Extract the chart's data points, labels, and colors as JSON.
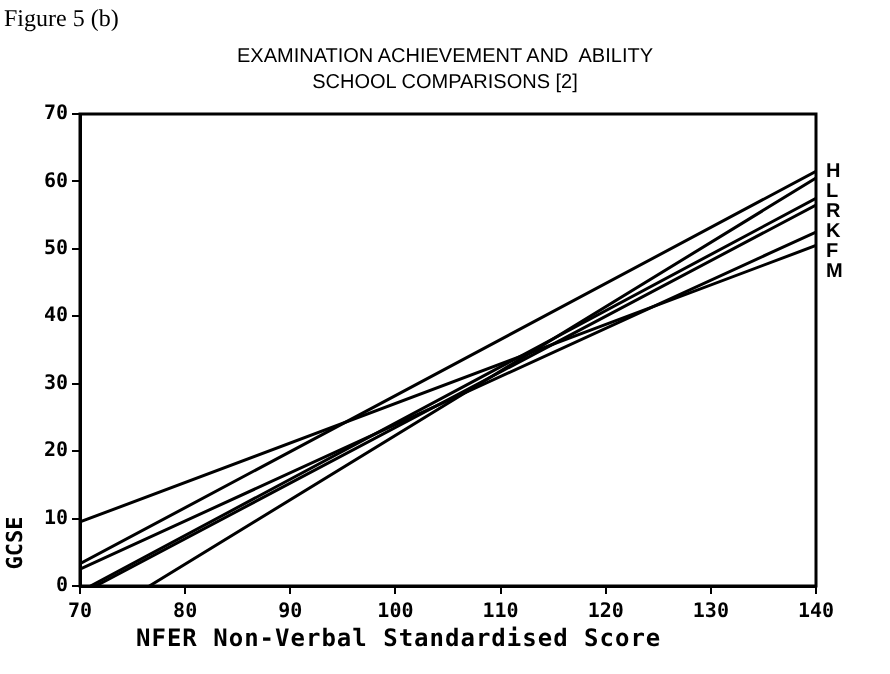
{
  "chart_data": {
    "type": "line",
    "title": "EXAMINATION ACHIEVEMENT AND  ABILITY\nSCHOOL COMPARISONS [2]",
    "xlabel": "NFER Non-Verbal Standardised Score",
    "ylabel": "GCSE",
    "annotations": [
      "Figure 5 (b)"
    ],
    "xlim": [
      70,
      140
    ],
    "xticks": [
      70,
      80,
      90,
      100,
      110,
      120,
      130,
      140
    ],
    "ylim": [
      0,
      70
    ],
    "yticks": [
      0,
      10,
      20,
      30,
      40,
      50,
      60,
      70
    ],
    "grid": false,
    "legend": false,
    "marker": "none",
    "line_style": "solid",
    "series": [
      {
        "name": "L",
        "color": "#000000",
        "x": [
          76.6,
          140
        ],
        "values": [
          0,
          60.5
        ]
      },
      {
        "name": "M",
        "color": "#000000",
        "x": [
          70,
          140
        ],
        "values": [
          9.5,
          50.5
        ]
      },
      {
        "name": "H",
        "color": "#000000",
        "x": [
          70,
          140
        ],
        "values": [
          3.3,
          61.5
        ]
      },
      {
        "name": "R",
        "color": "#000000",
        "x": [
          71,
          140
        ],
        "values": [
          0,
          57.5
        ]
      },
      {
        "name": "K",
        "color": "#000000",
        "x": [
          71.5,
          140
        ],
        "values": [
          0,
          56.5
        ]
      },
      {
        "name": "F",
        "color": "#000000",
        "x": [
          70,
          140
        ],
        "values": [
          2.5,
          52.5
        ]
      }
    ]
  }
}
